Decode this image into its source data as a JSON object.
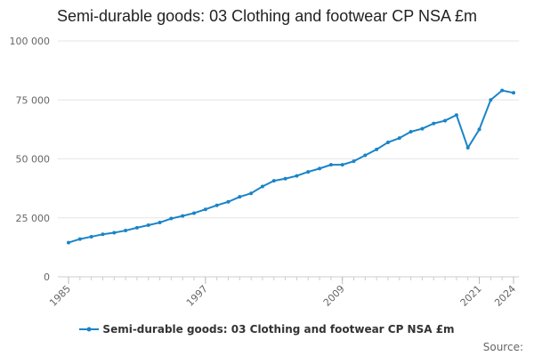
{
  "chart_data": {
    "type": "line",
    "title": "Semi-durable goods: 03 Clothing and footwear CP NSA £m",
    "xlabel": "",
    "ylabel": "",
    "ylim": [
      0,
      100000
    ],
    "xlim": [
      1985,
      2024
    ],
    "x_ticks": [
      "1985",
      "1997",
      "2009",
      "2021",
      "2024"
    ],
    "y_ticks": [
      {
        "value": 0,
        "label": "0"
      },
      {
        "value": 25000,
        "label": "25 000"
      },
      {
        "value": 50000,
        "label": "50 000"
      },
      {
        "value": 75000,
        "label": "75 000"
      },
      {
        "value": 100000,
        "label": "100 000"
      }
    ],
    "grid": true,
    "legend_position": "bottom",
    "color": "#1a84c7",
    "series": [
      {
        "name": "Semi-durable goods: 03 Clothing and footwear CP NSA £m",
        "x": [
          1985,
          1986,
          1987,
          1988,
          1989,
          1990,
          1991,
          1992,
          1993,
          1994,
          1995,
          1996,
          1997,
          1998,
          1999,
          2000,
          2001,
          2002,
          2003,
          2004,
          2005,
          2006,
          2007,
          2008,
          2009,
          2010,
          2011,
          2012,
          2013,
          2014,
          2015,
          2016,
          2017,
          2018,
          2019,
          2020,
          2021,
          2022,
          2023,
          2024
        ],
        "values": [
          14500,
          16000,
          17000,
          18000,
          18700,
          19600,
          20800,
          21900,
          23000,
          24700,
          25800,
          27000,
          28600,
          30300,
          31800,
          33900,
          35400,
          38300,
          40700,
          41600,
          42800,
          44500,
          45900,
          47500,
          47500,
          49000,
          51500,
          54000,
          57000,
          58800,
          61500,
          62800,
          65000,
          66200,
          68600,
          54700,
          62500,
          75000,
          79000,
          78000
        ]
      }
    ]
  },
  "source_label": "Source:"
}
